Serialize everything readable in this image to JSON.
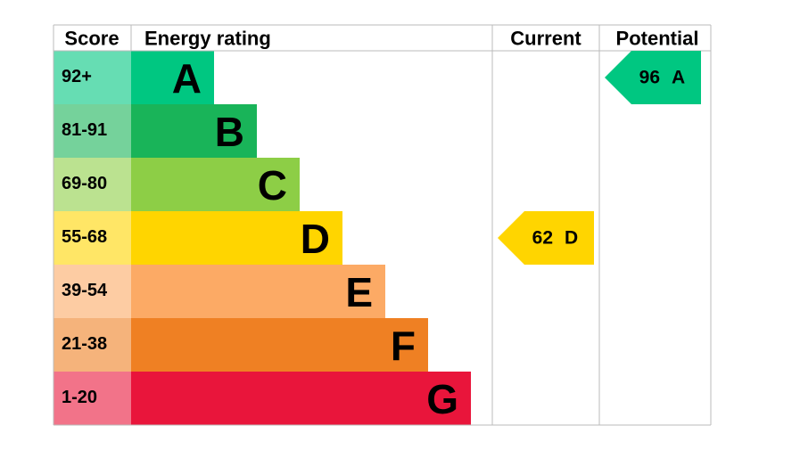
{
  "header": {
    "score": "Score",
    "rating": "Energy rating",
    "current": "Current",
    "potential": "Potential"
  },
  "bands": [
    {
      "score": "92+",
      "letter": "A",
      "color": "#00c781"
    },
    {
      "score": "81-91",
      "letter": "B",
      "color": "#19b459"
    },
    {
      "score": "69-80",
      "letter": "C",
      "color": "#8dce46"
    },
    {
      "score": "55-68",
      "letter": "D",
      "color": "#ffd500"
    },
    {
      "score": "39-54",
      "letter": "E",
      "color": "#fcaa65"
    },
    {
      "score": "21-38",
      "letter": "F",
      "color": "#ef8023"
    },
    {
      "score": "1-20",
      "letter": "G",
      "color": "#e9153b"
    }
  ],
  "current": {
    "value": 62,
    "letter": "D"
  },
  "potential": {
    "value": 96,
    "letter": "A"
  }
}
